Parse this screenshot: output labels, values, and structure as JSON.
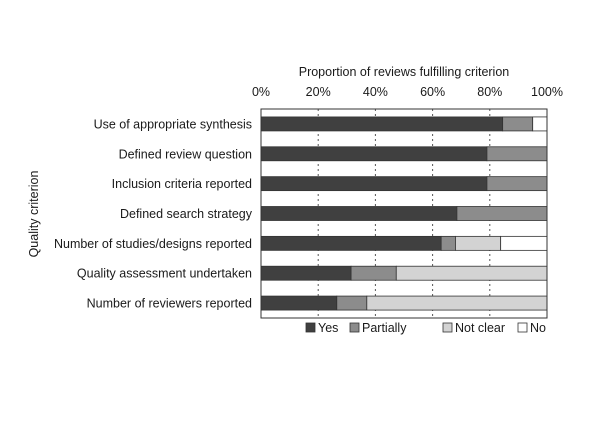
{
  "chart_data": {
    "type": "bar",
    "orientation": "horizontal",
    "stacked": true,
    "title": "",
    "xlabel": "Proportion of reviews fulfilling criterion",
    "ylabel": "Quality criterion",
    "xlim": [
      0,
      100
    ],
    "x_ticks": [
      "0%",
      "20%",
      "40%",
      "60%",
      "80%",
      "100%"
    ],
    "categories": [
      "Use of appropriate synthesis",
      "Defined review question",
      "Inclusion criteria reported",
      "Defined search strategy",
      "Number of studies/designs reported",
      "Quality assessment undertaken",
      "Number of reviewers reported"
    ],
    "series": [
      {
        "name": "Yes",
        "color": "#404040",
        "values": [
          84.5,
          79,
          79,
          68.5,
          63,
          31.5,
          26.5
        ]
      },
      {
        "name": "Partially",
        "color": "#8c8c8c",
        "values": [
          10.5,
          21,
          21,
          31.5,
          5,
          15.8,
          10.5
        ]
      },
      {
        "name": "Not clear",
        "color": "#d3d3d3",
        "values": [
          0,
          0,
          0,
          0,
          15.8,
          52.7,
          63
        ]
      },
      {
        "name": "No",
        "color": "#ffffff",
        "values": [
          5,
          0,
          0,
          0,
          16.2,
          0,
          0
        ]
      }
    ],
    "grid": "vertical dotted",
    "legend_position": "bottom"
  }
}
